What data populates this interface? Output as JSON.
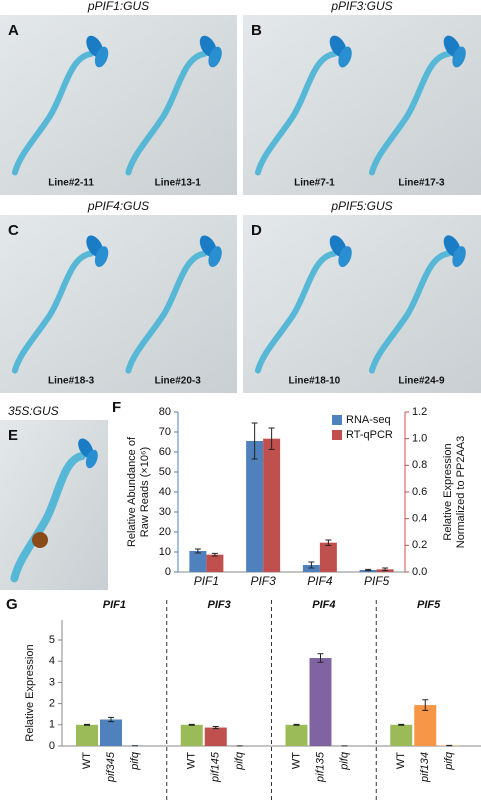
{
  "panels": [
    {
      "letter": "A",
      "title": "pPIF1:GUS",
      "lines": [
        "Line#2-11",
        "Line#13-1"
      ]
    },
    {
      "letter": "B",
      "title": "pPIF3:GUS",
      "lines": [
        "Line#7-1",
        "Line#17-3"
      ]
    },
    {
      "letter": "C",
      "title": "pPIF4:GUS",
      "lines": [
        "Line#18-3",
        "Line#20-3"
      ]
    },
    {
      "letter": "D",
      "title": "pPIF5:GUS",
      "lines": [
        "Line#18-10",
        "Line#24-9"
      ]
    },
    {
      "letter": "E",
      "title": "35S:GUS",
      "lines": []
    }
  ],
  "chart_data": [
    {
      "type": "bar",
      "letter": "F",
      "categories": [
        "PIF1",
        "PIF3",
        "PIF4",
        "PIF5"
      ],
      "series": [
        {
          "name": "RNA-seq",
          "color": "#4f81bd",
          "values": [
            10.5,
            65.5,
            3.5,
            1
          ],
          "errors": [
            1,
            9,
            1.5,
            0.3
          ]
        },
        {
          "name": "RT-qPCR",
          "color": "#c0504d",
          "axis": "y2",
          "values": [
            0.13,
            1.0,
            0.22,
            0.02
          ],
          "errors": [
            0.01,
            0.08,
            0.02,
            0.01
          ]
        }
      ],
      "ylabel": [
        "Relative Abundance of",
        "Raw Reads (×10⁶)"
      ],
      "y2label": [
        "Relative Expression",
        "Normalized to PP2AA3"
      ],
      "ylim": [
        0,
        80
      ],
      "yticks": [
        0,
        10,
        20,
        30,
        40,
        50,
        60,
        70,
        80
      ],
      "y2lim": [
        0,
        1.2
      ],
      "y2ticks": [
        {
          "value": 0,
          "label": "0.0"
        },
        0.2,
        0.4,
        0.6,
        0.8,
        {
          "value": 1,
          "label": "1.0"
        },
        1.2
      ],
      "legend": "top-right"
    },
    {
      "type": "grouped_bar",
      "letter": "G",
      "ylabel": "Relative Expression",
      "ylim": [
        0,
        5
      ],
      "yticks": [
        0,
        1,
        2,
        3,
        4,
        5
      ],
      "groups": [
        {
          "title": "PIF1",
          "categories": [
            "WT",
            "pif345",
            "pifq"
          ],
          "values": [
            1,
            1.25,
            0.01
          ],
          "errors": [
            0.02,
            0.1,
            0
          ],
          "colors": [
            "#9bbb59",
            "#4f81bd",
            "#4f81bd"
          ]
        },
        {
          "title": "PIF3",
          "categories": [
            "WT",
            "pif145",
            "pifq"
          ],
          "values": [
            1,
            0.87,
            0.005
          ],
          "errors": [
            0.02,
            0.05,
            0
          ],
          "colors": [
            "#9bbb59",
            "#c0504d",
            "#c0504d"
          ]
        },
        {
          "title": "PIF4",
          "categories": [
            "WT",
            "pif135",
            "pifq"
          ],
          "values": [
            1,
            4.15,
            0.005
          ],
          "errors": [
            0.02,
            0.2,
            0
          ],
          "colors": [
            "#9bbb59",
            "#8064a2",
            "#8064a2"
          ]
        },
        {
          "title": "PIF5",
          "categories": [
            "WT",
            "pif134",
            "pifq"
          ],
          "values": [
            1,
            1.93,
            0.02
          ],
          "errors": [
            0.02,
            0.25,
            0.01
          ],
          "colors": [
            "#9bbb59",
            "#f79646",
            "#f79646"
          ]
        }
      ]
    }
  ]
}
